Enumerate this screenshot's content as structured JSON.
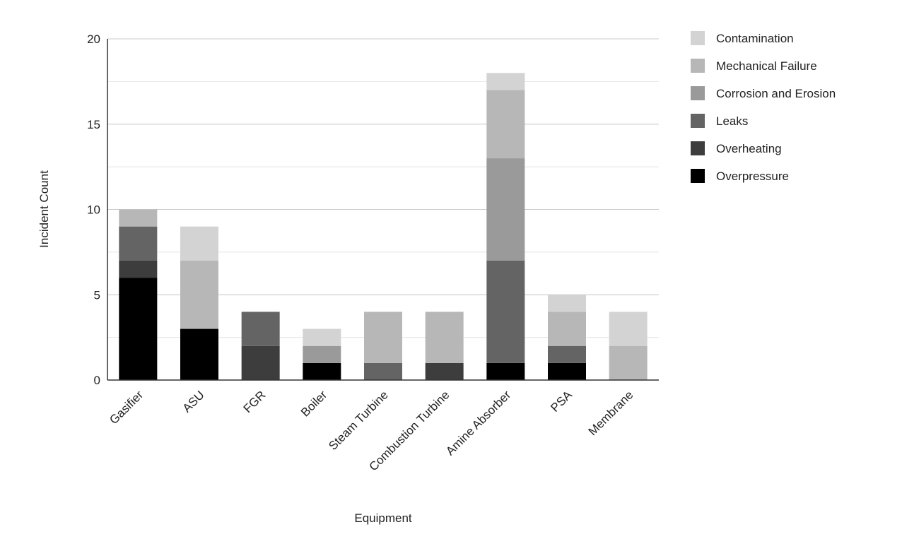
{
  "chart_data": {
    "type": "bar",
    "stacked": true,
    "title": "",
    "xlabel": "Equipment",
    "ylabel": "Incident Count",
    "ylim": [
      0,
      20
    ],
    "yticks": [
      0,
      5,
      10,
      15,
      20
    ],
    "grid": true,
    "legend_position": "right",
    "categories": [
      "Gasifier",
      "ASU",
      "FGR",
      "Boiler",
      "Steam Turbine",
      "Combustion Turbine",
      "Amine Absorber",
      "PSA",
      "Membrane"
    ],
    "series": [
      {
        "name": "Overpressure",
        "color": "#000000",
        "values": [
          6,
          3,
          0,
          1,
          0,
          0,
          1,
          1,
          0
        ]
      },
      {
        "name": "Overheating",
        "color": "#3d3d3d",
        "values": [
          1,
          0,
          2,
          0,
          0,
          1,
          0,
          0,
          0
        ]
      },
      {
        "name": "Leaks",
        "color": "#646464",
        "values": [
          2,
          0,
          2,
          0,
          1,
          0,
          6,
          1,
          0
        ]
      },
      {
        "name": "Corrosion and Erosion",
        "color": "#9a9a9a",
        "values": [
          0,
          0,
          0,
          1,
          0,
          0,
          6,
          0,
          0
        ]
      },
      {
        "name": "Mechanical Failure",
        "color": "#b7b7b7",
        "values": [
          1,
          4,
          0,
          0,
          3,
          3,
          4,
          2,
          2
        ]
      },
      {
        "name": "Contamination",
        "color": "#d3d3d3",
        "values": [
          0,
          2,
          0,
          1,
          0,
          0,
          1,
          1,
          2
        ]
      }
    ]
  }
}
